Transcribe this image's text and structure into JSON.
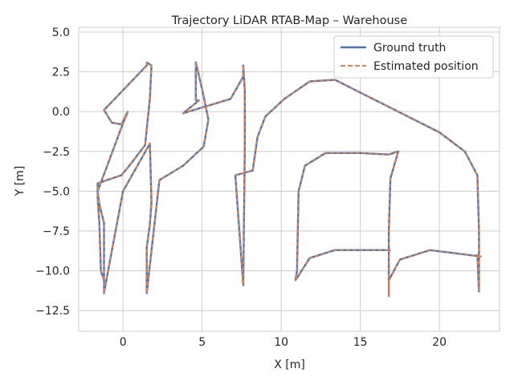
{
  "chart_data": {
    "type": "line",
    "title": "Trajectory LiDAR RTAB-Map – Warehouse",
    "xlabel": "X [m]",
    "ylabel": "Y [m]",
    "xlim": [
      -2.8,
      23.8
    ],
    "ylim": [
      -13.8,
      5.3
    ],
    "xticks": [
      0,
      5,
      10,
      15,
      20
    ],
    "yticks": [
      5.0,
      2.5,
      0.0,
      -2.5,
      -5.0,
      -7.5,
      -10.0,
      -12.5
    ],
    "xtick_labels": [
      "0",
      "5",
      "10",
      "15",
      "20"
    ],
    "ytick_labels": [
      "5.0",
      "2.5",
      "0.0",
      "−2.5",
      "−5.0",
      "−7.5",
      "−10.0",
      "−12.5"
    ],
    "grid": true,
    "legend_position": "top-right",
    "series": [
      {
        "name": "Ground truth",
        "color": "#4c72b0",
        "style": "solid",
        "x": [
          -1.2,
          -1.2,
          -1.2,
          -1.5,
          -1.6,
          -0.1,
          0.3,
          -0.1,
          -0.7,
          -1.2,
          1.5,
          1.5,
          1.8,
          1.7,
          1.4,
          0.4,
          -0.1,
          -1.6,
          -1.6,
          -1.5,
          -1.4,
          -1.2,
          -1.2,
          -0.7,
          0.0,
          1.7,
          1.8,
          1.7,
          1.5,
          1.5,
          2.3,
          3.8,
          5.1,
          5.4,
          5.0,
          4.6,
          4.6,
          4.8,
          3.8,
          6.8,
          7.6,
          7.6,
          7.7,
          7.7,
          7.6,
          7.1,
          8.2,
          8.5,
          9.0,
          10.2,
          11.8,
          13.4,
          15.0,
          17.0,
          20.0,
          21.6,
          22.4,
          22.5,
          22.5,
          22.4,
          22.6,
          19.4,
          17.5,
          16.8,
          16.8,
          16.8,
          16.9,
          17.4,
          16.8,
          15.0,
          12.8,
          11.5,
          11.1,
          11.0,
          10.9,
          11.8,
          13.4,
          16.9
        ],
        "y": [
          -11.4,
          -9.0,
          -7.0,
          -5.8,
          -5.0,
          -1.0,
          0.0,
          -0.8,
          -0.7,
          0.1,
          2.9,
          3.1,
          2.9,
          0.8,
          -2.1,
          -3.4,
          -4.0,
          -4.5,
          -5.4,
          -6.9,
          -10.0,
          -10.6,
          -11.4,
          -8.7,
          -5.0,
          -2.0,
          -5.7,
          -7.1,
          -8.5,
          -11.4,
          -4.3,
          -3.4,
          -2.2,
          -0.5,
          1.4,
          3.1,
          0.7,
          0.7,
          -0.1,
          0.8,
          2.2,
          2.9,
          1.3,
          -2.3,
          -10.9,
          -4.0,
          -3.7,
          -1.6,
          -0.3,
          0.8,
          1.9,
          2.0,
          1.2,
          0.2,
          -1.3,
          -2.5,
          -4.0,
          -7.5,
          -11.3,
          -9.0,
          -9.1,
          -8.7,
          -9.3,
          -10.6,
          -11.6,
          -7.6,
          -4.2,
          -2.5,
          -2.7,
          -2.6,
          -2.6,
          -3.4,
          -5.0,
          -10.0,
          -10.6,
          -9.2,
          -8.7,
          -8.7
        ]
      },
      {
        "name": "Estimated position",
        "color": "#dd8452",
        "style": "dashed",
        "x": [
          -1.2,
          -1.2,
          -1.2,
          -1.5,
          -1.6,
          -0.1,
          0.3,
          -0.1,
          -0.7,
          -1.2,
          1.5,
          1.5,
          1.8,
          1.7,
          1.4,
          0.4,
          -0.1,
          -1.6,
          -1.6,
          -1.5,
          -1.4,
          -1.2,
          -1.2,
          -0.7,
          0.0,
          1.7,
          1.8,
          1.7,
          1.5,
          1.5,
          2.3,
          3.8,
          5.1,
          5.4,
          5.0,
          4.6,
          4.6,
          4.8,
          3.8,
          6.8,
          7.6,
          7.6,
          7.7,
          7.7,
          7.6,
          7.1,
          8.2,
          8.5,
          9.0,
          10.2,
          11.8,
          13.4,
          15.0,
          17.0,
          20.0,
          21.6,
          22.4,
          22.5,
          22.5,
          22.4,
          22.6,
          19.4,
          17.5,
          16.8,
          16.8,
          16.8,
          16.9,
          17.4,
          16.8,
          15.0,
          12.8,
          11.5,
          11.1,
          11.0,
          10.9,
          11.8,
          13.4,
          16.9
        ],
        "y": [
          -11.4,
          -9.0,
          -7.0,
          -5.8,
          -5.0,
          -1.0,
          0.0,
          -0.8,
          -0.7,
          0.1,
          2.9,
          3.1,
          2.9,
          0.8,
          -2.1,
          -3.4,
          -4.0,
          -4.5,
          -5.4,
          -6.9,
          -10.0,
          -10.6,
          -11.4,
          -8.7,
          -5.0,
          -2.0,
          -5.7,
          -7.1,
          -8.5,
          -11.4,
          -4.3,
          -3.4,
          -2.2,
          -0.5,
          1.4,
          3.1,
          0.7,
          0.7,
          -0.1,
          0.8,
          2.2,
          2.9,
          1.3,
          -2.3,
          -10.9,
          -4.0,
          -3.7,
          -1.6,
          -0.3,
          0.8,
          1.9,
          2.0,
          1.2,
          0.2,
          -1.3,
          -2.5,
          -4.0,
          -7.5,
          -11.3,
          -9.0,
          -9.1,
          -8.7,
          -9.3,
          -10.6,
          -11.6,
          -7.6,
          -4.2,
          -2.5,
          -2.7,
          -2.6,
          -2.6,
          -3.4,
          -5.0,
          -10.0,
          -10.6,
          -9.2,
          -8.7,
          -8.7
        ]
      }
    ]
  }
}
